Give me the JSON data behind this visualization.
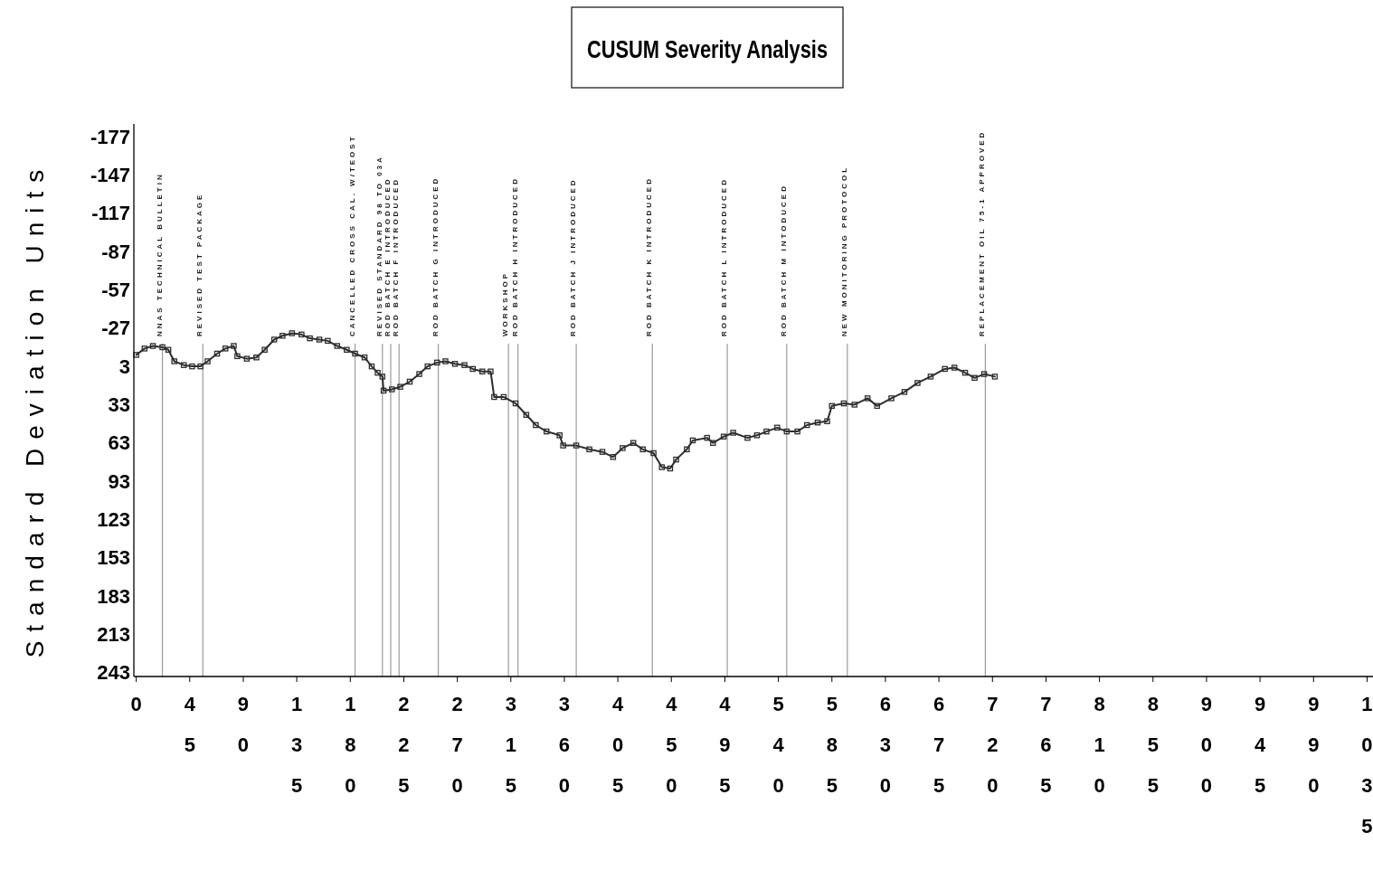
{
  "chart_data": {
    "type": "line",
    "title": "CUSUM Severity Analysis",
    "ylabel": "Standard Deviation Units",
    "x": [
      0,
      7,
      14,
      22,
      27,
      32,
      40,
      47,
      54,
      60,
      68,
      75,
      82,
      85,
      93,
      101,
      108,
      116,
      123,
      131,
      139,
      146,
      154,
      161,
      169,
      177,
      184,
      192,
      198,
      203,
      207,
      208,
      215,
      222,
      230,
      238,
      245,
      253,
      260,
      268,
      276,
      283,
      291,
      298,
      301,
      309,
      319,
      328,
      336,
      345,
      356,
      359,
      370,
      381,
      392,
      401,
      409,
      418,
      426,
      435,
      442,
      449,
      454,
      463,
      468,
      480,
      485,
      494,
      502,
      514,
      522,
      530,
      539,
      547,
      556,
      564,
      573,
      581,
      585,
      595,
      604,
      615,
      623,
      635,
      646,
      657,
      668,
      680,
      688,
      697,
      705,
      713,
      722
    ],
    "series": [
      {
        "color": "#2e2e2e",
        "values": [
          -6,
          -11,
          -13,
          -12,
          -10,
          -1,
          2,
          3,
          3,
          -1,
          -7,
          -11,
          -13,
          -5,
          -3,
          -4,
          -10,
          -18,
          -21,
          -23,
          -22,
          -19,
          -18,
          -17,
          -13,
          -10,
          -7,
          -4,
          3,
          8,
          11,
          22,
          21,
          19,
          15,
          9,
          3,
          0,
          -1,
          1,
          2,
          5,
          7,
          7,
          27,
          27,
          32,
          41,
          49,
          54,
          57,
          65,
          65,
          68,
          70,
          74,
          67,
          63,
          68,
          71,
          82,
          83,
          76,
          68,
          61,
          59,
          63,
          58,
          55,
          59,
          57,
          54,
          51,
          54,
          54,
          49,
          47,
          46,
          34,
          32,
          33,
          28,
          34,
          28,
          23,
          16,
          11,
          5,
          4,
          8,
          12,
          9,
          11
        ]
      }
    ],
    "xlim": [
      -2,
      1040
    ],
    "xticks": [
      0,
      45,
      90,
      135,
      180,
      225,
      270,
      315,
      360,
      405,
      450,
      495,
      540,
      585,
      630,
      675,
      720,
      765,
      810,
      855,
      900,
      945,
      990,
      1035
    ],
    "ylim": [
      246,
      -187
    ],
    "yticks": [
      -177,
      -147,
      -117,
      -87,
      -57,
      -27,
      3,
      33,
      63,
      93,
      123,
      153,
      183,
      213,
      243
    ],
    "marker": "square",
    "ref_lines": [
      {
        "axis": "x",
        "value": 22,
        "label": "NNAS TECHNICAL BULLETIN",
        "color": "#9a9a9a"
      },
      {
        "axis": "x",
        "value": 56,
        "label": "REVISED TEST PACKAGE",
        "color": "#9a9a9a"
      },
      {
        "axis": "x",
        "value": 184,
        "label": "CANCELLED CROSS CAL. W/TEOST",
        "color": "#9a9a9a"
      },
      {
        "axis": "x",
        "value": 207,
        "label": "REVISED STANDARD 98 TO 03A",
        "color": "#9a9a9a"
      },
      {
        "axis": "x",
        "value": 214,
        "label": "ROD BATCH E INTRODUCED",
        "color": "#9a9a9a"
      },
      {
        "axis": "x",
        "value": 221,
        "label": "ROD BATCH F INTRODUCED",
        "color": "#9a9a9a"
      },
      {
        "axis": "x",
        "value": 254,
        "label": "ROD BATCH G INTRODUCED",
        "color": "#9a9a9a"
      },
      {
        "axis": "x",
        "value": 313,
        "label": "WORKSHOP",
        "color": "#9a9a9a"
      },
      {
        "axis": "x",
        "value": 321,
        "label": "ROD BATCH H INTRODUCED",
        "color": "#9a9a9a"
      },
      {
        "axis": "x",
        "value": 370,
        "label": "ROD BATCH J INTRODUCED",
        "color": "#9a9a9a"
      },
      {
        "axis": "x",
        "value": 434,
        "label": "ROD BATCH K INTRODUCED",
        "color": "#9a9a9a"
      },
      {
        "axis": "x",
        "value": 497,
        "label": "ROD BATCH L INTRODUCED",
        "color": "#9a9a9a"
      },
      {
        "axis": "x",
        "value": 547,
        "label": "ROD BATCH M INTODUCED",
        "color": "#9a9a9a"
      },
      {
        "axis": "x",
        "value": 598,
        "label": "NEW MONITORING PROTOCOL",
        "color": "#9a9a9a"
      },
      {
        "axis": "x",
        "value": 714,
        "label": "REPLACEMENT OIL 75-1 APPROVED",
        "color": "#9a9a9a"
      }
    ]
  }
}
